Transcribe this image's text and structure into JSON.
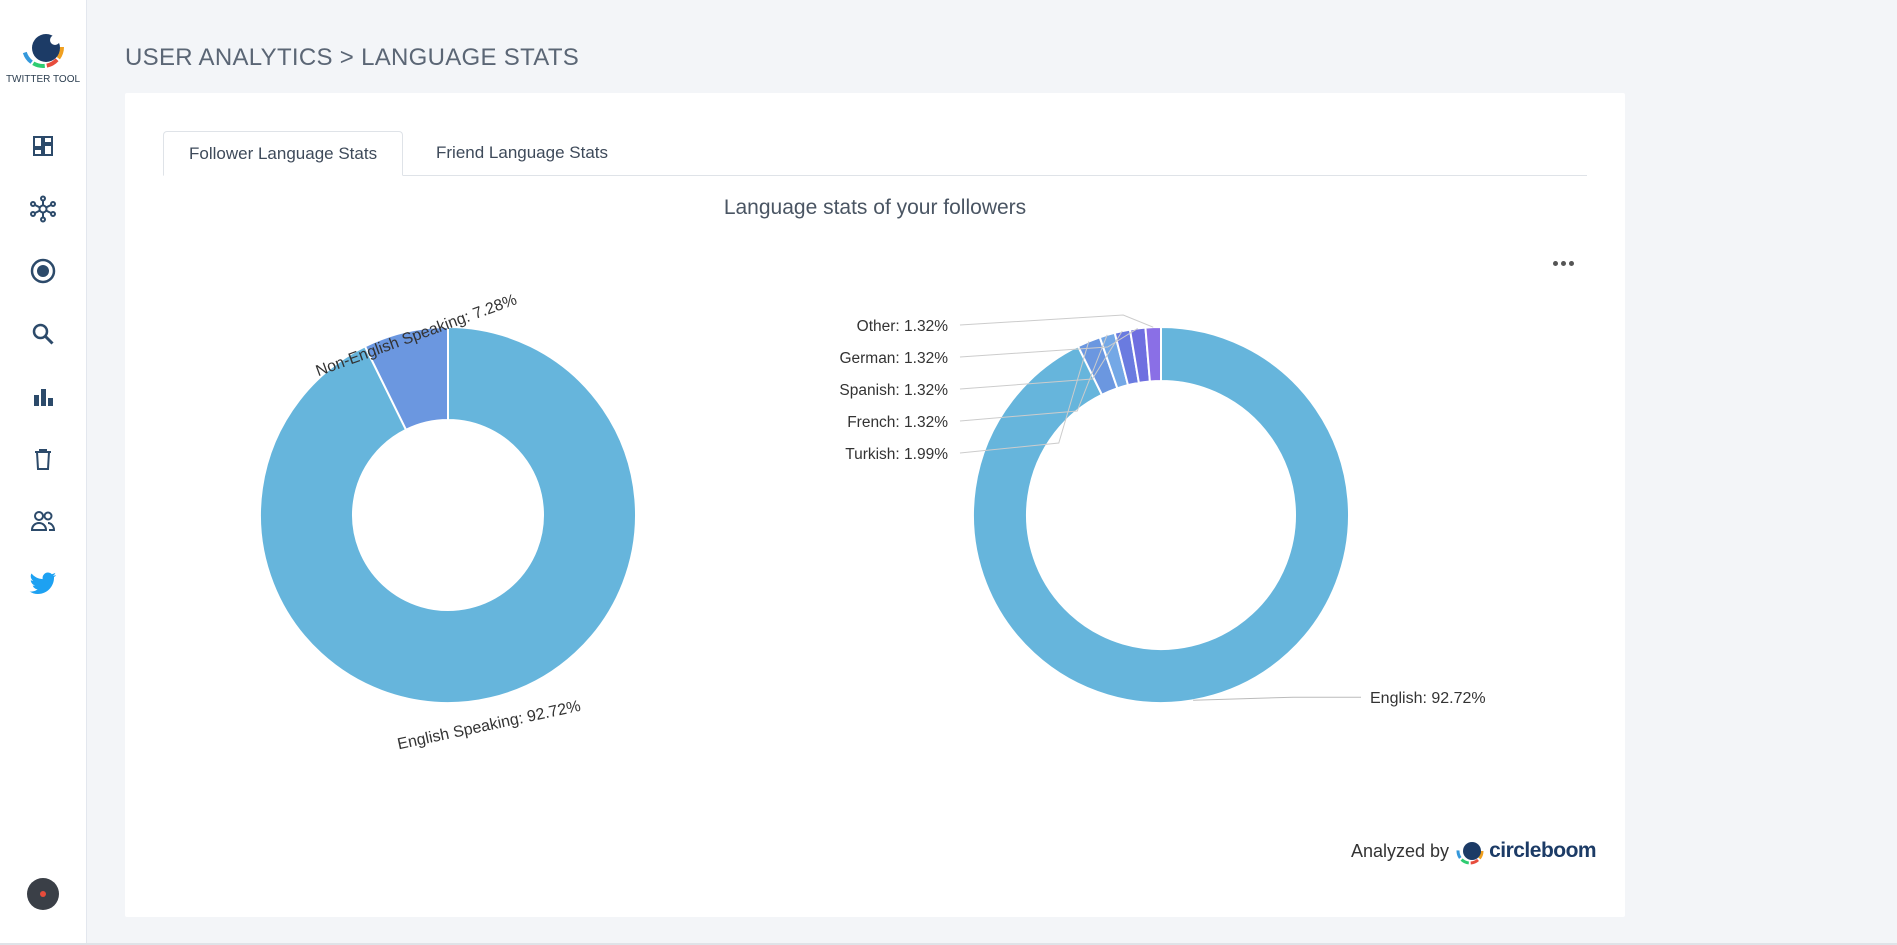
{
  "sidebar": {
    "logo_text": "TWITTER TOOL",
    "icons": [
      {
        "name": "dashboard-icon"
      },
      {
        "name": "network-icon"
      },
      {
        "name": "target-icon"
      },
      {
        "name": "search-icon"
      },
      {
        "name": "analytics-icon"
      },
      {
        "name": "delete-icon"
      },
      {
        "name": "users-icon"
      },
      {
        "name": "twitter-icon"
      }
    ]
  },
  "header": {
    "title": "USER ANALYTICS > LANGUAGE STATS"
  },
  "tabs": [
    {
      "label": "Follower Language Stats",
      "active": true
    },
    {
      "label": "Friend Language Stats",
      "active": false
    }
  ],
  "chart_title": "Language stats of your followers",
  "footer": {
    "analyzed_by": "Analyzed by",
    "brand": "circleboom"
  },
  "colors": {
    "main": "#66b5dc",
    "non_english": "#6b97e0",
    "small_slices": [
      "#6b97e0",
      "#74a8e6",
      "#6a7be0",
      "#6f6fe0",
      "#8a6fe6"
    ]
  },
  "chart_data": [
    {
      "type": "pie",
      "variant": "donut",
      "title": "Language stats of your followers",
      "slices": [
        {
          "label": "English Speaking",
          "value": 92.72,
          "display": "English Speaking: 92.72%"
        },
        {
          "label": "Non-English Speaking",
          "value": 7.28,
          "display": "Non-English Speaking: 7.28%"
        }
      ]
    },
    {
      "type": "pie",
      "variant": "donut",
      "slices": [
        {
          "label": "English",
          "value": 92.72,
          "display": "English: 92.72%"
        },
        {
          "label": "Turkish",
          "value": 1.99,
          "display": "Turkish: 1.99%"
        },
        {
          "label": "French",
          "value": 1.32,
          "display": "French: 1.32%"
        },
        {
          "label": "Spanish",
          "value": 1.32,
          "display": "Spanish: 1.32%"
        },
        {
          "label": "German",
          "value": 1.32,
          "display": "German: 1.32%"
        },
        {
          "label": "Other",
          "value": 1.32,
          "display": "Other: 1.32%"
        }
      ]
    }
  ]
}
